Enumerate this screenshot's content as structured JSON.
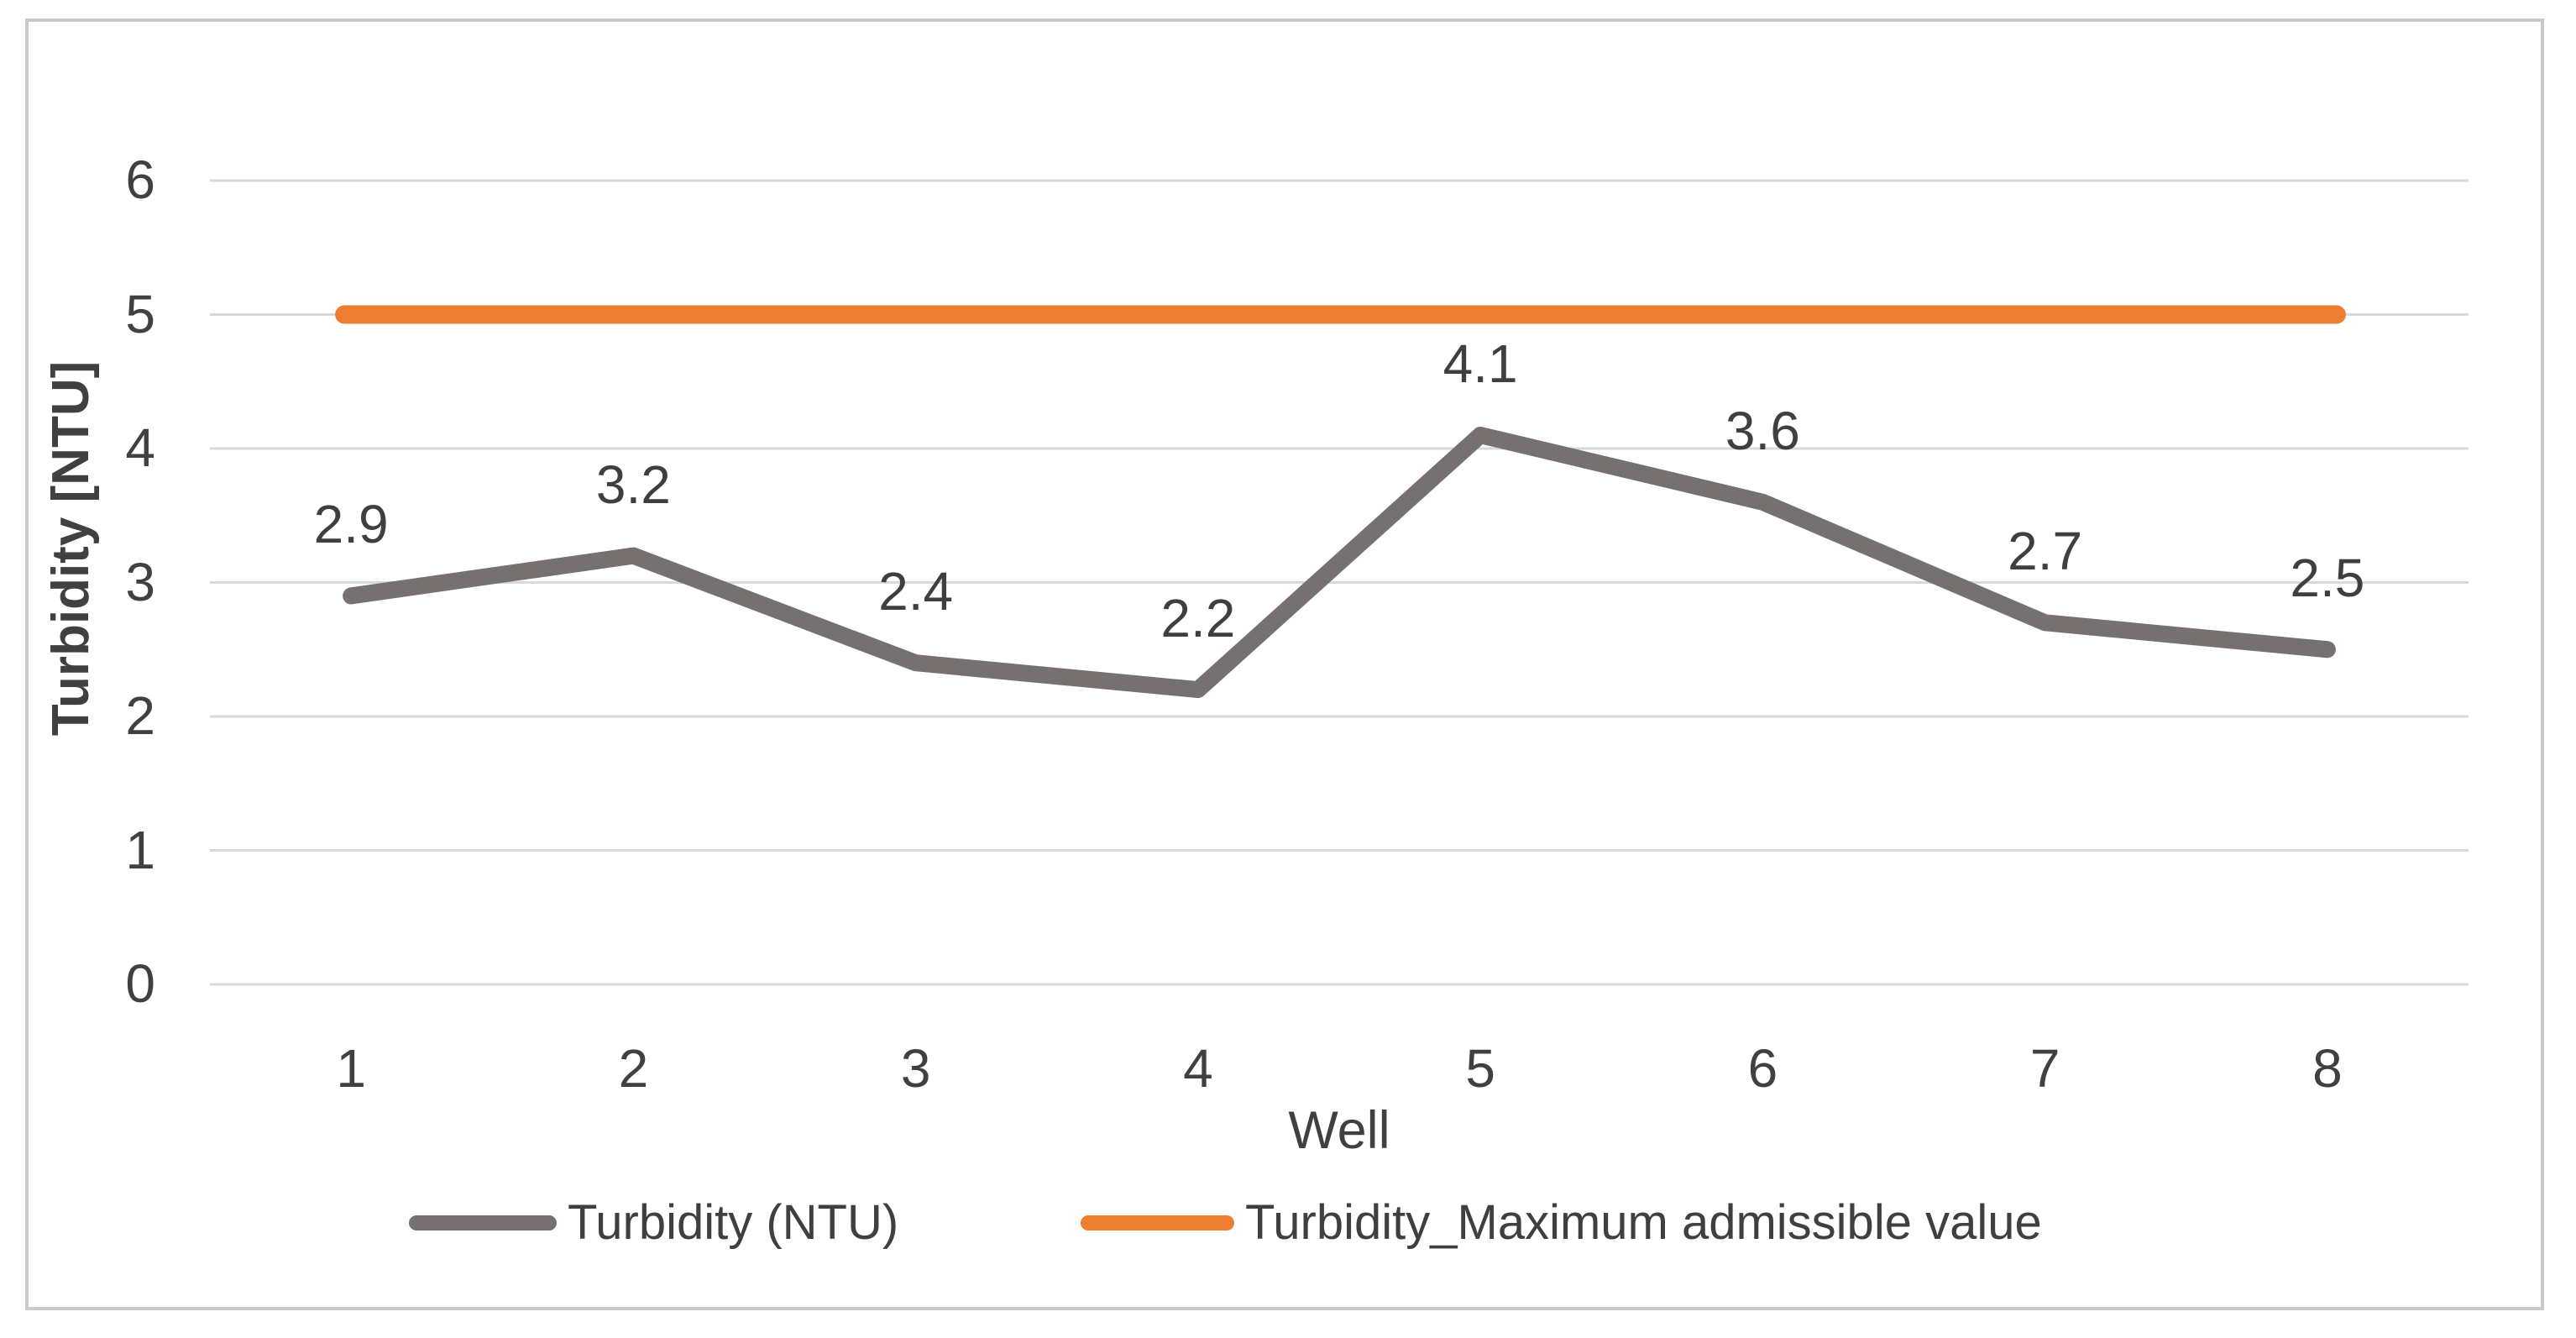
{
  "chart_data": {
    "type": "line",
    "categories": [
      "1",
      "2",
      "3",
      "4",
      "5",
      "6",
      "7",
      "8"
    ],
    "series": [
      {
        "name": "Turbidity (NTU)",
        "values": [
          2.9,
          3.2,
          2.4,
          2.2,
          4.1,
          3.6,
          2.7,
          2.5
        ],
        "data_labels": [
          "2.9",
          "3.2",
          "2.4",
          "2.2",
          "4.1",
          "3.6",
          "2.7",
          "2.5"
        ],
        "color": "#767170"
      },
      {
        "name": "Turbidity_Maximum admissible value",
        "values": [
          5,
          5,
          5,
          5,
          5,
          5,
          5,
          5
        ],
        "color": "#ED7D31"
      }
    ],
    "title": "",
    "xlabel": "Well",
    "ylabel": "Turbidity [NTU]",
    "ylim": [
      0,
      6
    ],
    "yticks": [
      0,
      1,
      2,
      3,
      4,
      5,
      6
    ],
    "ytick_labels": [
      "0",
      "1",
      "2",
      "3",
      "4",
      "5",
      "6"
    ],
    "grid": true,
    "legend_position": "bottom"
  },
  "legend": {
    "items": [
      {
        "label": "Turbidity (NTU)",
        "color": "#767170"
      },
      {
        "label": "Turbidity_Maximum admissible value",
        "color": "#ED7D31"
      }
    ]
  },
  "colors": {
    "gridline": "#D9D9D9",
    "frame_border": "#C9C9C9",
    "text": "#404040",
    "background": "#FFFFFF"
  }
}
